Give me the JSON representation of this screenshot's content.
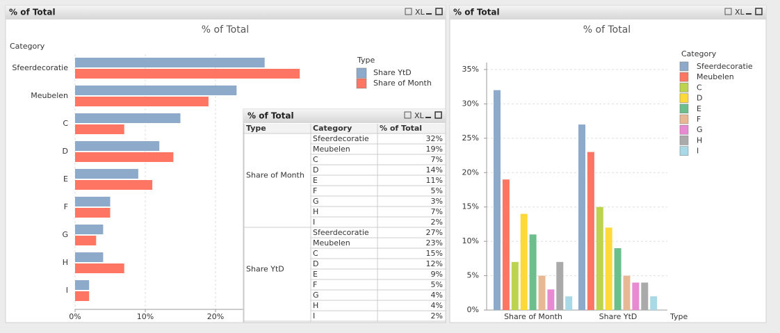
{
  "windows": [
    {
      "title": "% of Total",
      "export_label": "XL"
    },
    {
      "title": "% of Total",
      "export_label": "XL"
    }
  ],
  "chart_data": [
    {
      "type": "hbar",
      "title": "% of Total",
      "y_label": "Category",
      "legend_title": "Type",
      "categories": [
        "Sfeerdecoratie",
        "Meubelen",
        "C",
        "D",
        "E",
        "F",
        "G",
        "H",
        "I"
      ],
      "series": [
        {
          "name": "Share YtD",
          "color": "#8eaacb",
          "values": [
            27,
            23,
            15,
            12,
            9,
            5,
            4,
            4,
            2
          ]
        },
        {
          "name": "Share of Month",
          "color": "#ff7563",
          "values": [
            32,
            19,
            7,
            14,
            11,
            5,
            3,
            7,
            2
          ]
        }
      ],
      "xlim": [
        0,
        50
      ],
      "xticks": [
        {
          "value": 0,
          "label": "0%"
        },
        {
          "value": 10,
          "label": "10%"
        },
        {
          "value": 20,
          "label": "20%"
        }
      ],
      "grid": true
    },
    {
      "type": "bar",
      "title": "% of Total",
      "x_label": "Type",
      "legend_title": "Category",
      "categories": [
        "Share of Month",
        "Share YtD"
      ],
      "series": [
        {
          "name": "Sfeerdecoratie",
          "color": "#8eaacb",
          "values": [
            32,
            27
          ]
        },
        {
          "name": "Meubelen",
          "color": "#ff7563",
          "values": [
            19,
            23
          ]
        },
        {
          "name": "C",
          "color": "#bcd34f",
          "values": [
            7,
            15
          ]
        },
        {
          "name": "D",
          "color": "#ffd93a",
          "values": [
            14,
            12
          ]
        },
        {
          "name": "E",
          "color": "#6cbf8c",
          "values": [
            11,
            9
          ]
        },
        {
          "name": "F",
          "color": "#e8b894",
          "values": [
            5,
            5
          ]
        },
        {
          "name": "G",
          "color": "#e88ad2",
          "values": [
            3,
            4
          ]
        },
        {
          "name": "H",
          "color": "#aaaaaa",
          "values": [
            7,
            4
          ]
        },
        {
          "name": "I",
          "color": "#a9d9e6",
          "values": [
            2,
            2
          ]
        }
      ],
      "ylim": [
        0,
        35
      ],
      "yticks": [
        {
          "value": 0,
          "label": "0%"
        },
        {
          "value": 5,
          "label": "5%"
        },
        {
          "value": 10,
          "label": "10%"
        },
        {
          "value": 15,
          "label": "15%"
        },
        {
          "value": 20,
          "label": "20%"
        },
        {
          "value": 25,
          "label": "25%"
        },
        {
          "value": 30,
          "label": "30%"
        },
        {
          "value": 35,
          "label": "35%"
        }
      ],
      "grid": true
    }
  ],
  "table": {
    "title": "% of Total",
    "export_label": "XL",
    "columns": [
      "Type",
      "Category",
      "% of Total"
    ],
    "groups": [
      {
        "type": "Share of Month",
        "rows": [
          [
            "Sfeerdecoratie",
            "32%"
          ],
          [
            "Meubelen",
            "19%"
          ],
          [
            "C",
            "7%"
          ],
          [
            "D",
            "14%"
          ],
          [
            "E",
            "11%"
          ],
          [
            "F",
            "5%"
          ],
          [
            "G",
            "3%"
          ],
          [
            "H",
            "7%"
          ],
          [
            "I",
            "2%"
          ]
        ]
      },
      {
        "type": "Share YtD",
        "rows": [
          [
            "Sfeerdecoratie",
            "27%"
          ],
          [
            "Meubelen",
            "23%"
          ],
          [
            "C",
            "15%"
          ],
          [
            "D",
            "12%"
          ],
          [
            "E",
            "9%"
          ],
          [
            "F",
            "5%"
          ],
          [
            "G",
            "4%"
          ],
          [
            "H",
            "4%"
          ],
          [
            "I",
            "2%"
          ]
        ]
      }
    ]
  }
}
